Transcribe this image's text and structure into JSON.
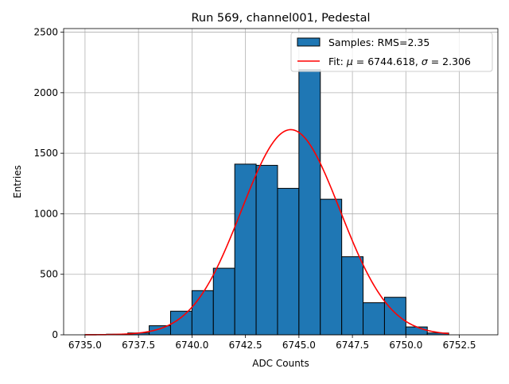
{
  "chart_data": {
    "type": "bar",
    "title": "Run 569, channel001, Pedestal",
    "xlabel": "ADC Counts",
    "ylabel": "Entries",
    "xlim": [
      6734.0,
      6754.3
    ],
    "ylim": [
      0,
      2530
    ],
    "grid": true,
    "legend_position": "top-right",
    "colors": {
      "bars": "#1f77b4",
      "bar_edge": "#000000",
      "fit": "#ff0000",
      "grid": "#b0b0b0"
    },
    "xticks": [
      6735.0,
      6737.5,
      6740.0,
      6742.5,
      6745.0,
      6747.5,
      6750.0,
      6752.5
    ],
    "xtick_labels": [
      "6735.0",
      "6737.5",
      "6740.0",
      "6742.5",
      "6745.0",
      "6747.5",
      "6750.0",
      "6752.5"
    ],
    "yticks": [
      0,
      500,
      1000,
      1500,
      2000,
      2500
    ],
    "ytick_labels": [
      "0",
      "500",
      "1000",
      "1500",
      "2000",
      "2500"
    ],
    "histogram": {
      "name": "Samples: RMS=2.35",
      "bin_edges": [
        6735,
        6736,
        6737,
        6738,
        6739,
        6740,
        6741,
        6742,
        6743,
        6744,
        6745,
        6746,
        6747,
        6748,
        6749,
        6750,
        6751,
        6752
      ],
      "counts": [
        2,
        5,
        15,
        75,
        195,
        365,
        550,
        1410,
        1400,
        1210,
        2190,
        1120,
        645,
        265,
        310,
        65,
        15
      ]
    },
    "fit": {
      "name": "Fit: μ = 6744.618, σ = 2.306",
      "label_parts": [
        "Fit: ",
        "μ",
        " = 6744.618, ",
        "σ",
        " = 2.306"
      ],
      "mu": 6744.618,
      "sigma": 2.306,
      "amplitude": 1695,
      "x_range": [
        6735,
        6752
      ]
    }
  }
}
